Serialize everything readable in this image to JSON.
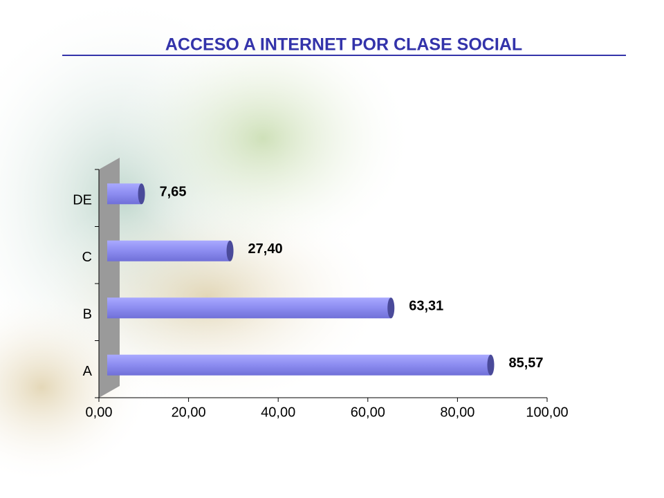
{
  "chart_data": {
    "type": "bar",
    "orientation": "horizontal",
    "title": "ACCESO A INTERNET POR CLASE SOCIAL",
    "categories": [
      "DE",
      "C",
      "B",
      "A"
    ],
    "values": [
      7.65,
      27.4,
      63.31,
      85.57
    ],
    "value_labels": [
      "7,65",
      "27,40",
      "63,31",
      "85,57"
    ],
    "color": "#8c8cf0",
    "xlim": [
      0,
      100
    ],
    "xticks": [
      {
        "value": 0,
        "label": "0,00"
      },
      {
        "value": 20,
        "label": "20,00"
      },
      {
        "value": 40,
        "label": "40,00"
      },
      {
        "value": 60,
        "label": "60,00"
      },
      {
        "value": 80,
        "label": "80,00"
      },
      {
        "value": 100,
        "label": "100,00"
      }
    ],
    "grid": false
  }
}
